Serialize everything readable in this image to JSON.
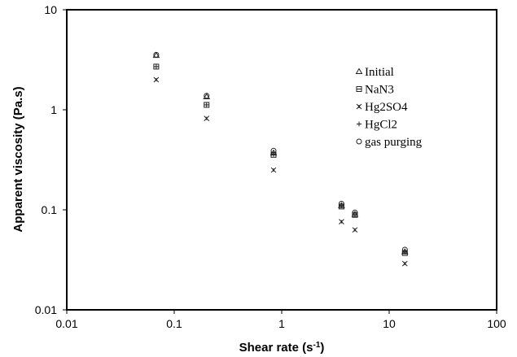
{
  "chart_data": {
    "type": "scatter",
    "title": "",
    "xlabel": "Shear rate (s",
    "xlabel_sup": "-1",
    "xlabel_end": ")",
    "ylabel": "Apparent viscosity (Pa.s)",
    "xscale": "log",
    "yscale": "log",
    "xlim": [
      0.01,
      100
    ],
    "ylim": [
      0.01,
      10
    ],
    "x_ticks": [
      0.01,
      0.1,
      1,
      10,
      100
    ],
    "x_tick_labels": [
      "0.01",
      "0.1",
      "1",
      "10",
      "100"
    ],
    "y_ticks": [
      0.01,
      0.1,
      1,
      10
    ],
    "y_tick_labels": [
      "0.01",
      "0.1",
      "1",
      "10"
    ],
    "grid": false,
    "legend_position": "top-right",
    "series": [
      {
        "name": "Initial",
        "marker": "triangle",
        "x": [
          0.068,
          0.2,
          0.84,
          3.6,
          4.8,
          14
        ],
        "y": [
          3.5,
          1.35,
          0.37,
          0.11,
          0.09,
          0.038
        ]
      },
      {
        "name": "NaN3",
        "marker": "square",
        "x": [
          0.068,
          0.2,
          0.84,
          3.6,
          4.8,
          14
        ],
        "y": [
          2.7,
          1.12,
          0.355,
          0.108,
          0.089,
          0.037
        ]
      },
      {
        "name": "Hg2SO4",
        "marker": "x-star",
        "x": [
          0.068,
          0.2,
          0.84,
          3.6,
          4.8,
          14
        ],
        "y": [
          2.0,
          0.82,
          0.25,
          0.076,
          0.063,
          0.029
        ]
      },
      {
        "name": "HgCl2",
        "marker": "plus",
        "x": [
          0.068,
          0.2,
          0.84,
          3.6,
          4.8,
          14
        ],
        "y": [
          2.7,
          1.12,
          0.36,
          0.11,
          0.089,
          0.038
        ]
      },
      {
        "name": "gas purging",
        "marker": "circle",
        "x": [
          0.068,
          0.2,
          0.84,
          3.6,
          4.8,
          14
        ],
        "y": [
          3.55,
          1.38,
          0.39,
          0.115,
          0.094,
          0.04
        ]
      }
    ]
  }
}
